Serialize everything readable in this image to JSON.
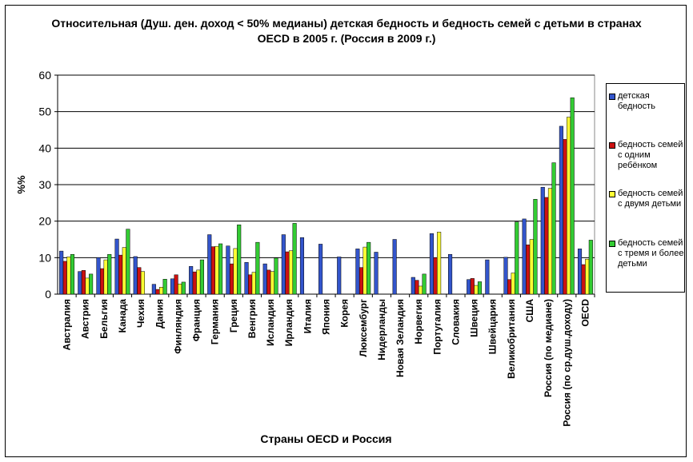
{
  "chart_data": {
    "type": "bar",
    "title": "Относительная  (Душ. ден. доход < 50% медианы) детская бедность и бедность семей с детьми в странах OECD в 2005 г. (Россия в 2009 г.)",
    "xlabel": "Страны OECD и Россия",
    "ylabel": "%%",
    "ylim": [
      0,
      60
    ],
    "yticks": [
      "0",
      "10",
      "20",
      "30",
      "40",
      "50",
      "60"
    ],
    "grid": true,
    "legend_position": "right",
    "categories": [
      "Австралия",
      "Австрия",
      "Бельгия",
      "Канада",
      "Чехия",
      "Дания",
      "Финляндия",
      "Франция",
      "Германия",
      "Греция",
      "Венгрия",
      "Исландия",
      "Ирландия",
      "Италия",
      "Япония",
      "Корея",
      "Люксембург",
      "Нидерланды",
      "Новая Зеландия",
      "Норвегия",
      "Португалия",
      "Словакия",
      "Швеция",
      "Швейцария",
      "Великобритания",
      "США",
      "Россия (по медиане)",
      "Россия (по ср.душ.доходу)",
      "OECD"
    ],
    "series": [
      {
        "name": "детская бедность",
        "color": "#3355cc",
        "values": [
          11.8,
          6.2,
          10.0,
          15.1,
          10.3,
          2.7,
          4.2,
          7.6,
          16.3,
          13.2,
          8.7,
          8.3,
          16.3,
          15.5,
          13.7,
          10.2,
          12.4,
          11.5,
          15.0,
          4.6,
          16.6,
          10.9,
          4.0,
          9.4,
          10.1,
          20.6,
          29.3,
          46.0,
          12.4
        ]
      },
      {
        "name": "бедность семей с одним ребёнком",
        "color": "#cc1111",
        "values": [
          9.0,
          6.5,
          7.0,
          10.7,
          7.3,
          1.3,
          5.3,
          6.1,
          13.0,
          8.3,
          5.3,
          6.6,
          11.6,
          null,
          null,
          null,
          7.3,
          null,
          null,
          3.8,
          10.0,
          null,
          4.3,
          null,
          4.0,
          13.5,
          26.5,
          42.4,
          8.1
        ]
      },
      {
        "name": "бедность семей с двумя детьми",
        "color": "#ffff33",
        "values": [
          10.2,
          4.4,
          9.4,
          12.8,
          6.2,
          1.9,
          2.8,
          6.6,
          13.1,
          12.5,
          6.0,
          6.2,
          11.9,
          null,
          null,
          null,
          12.9,
          null,
          null,
          2.2,
          17.0,
          null,
          2.4,
          null,
          5.8,
          15.0,
          29.0,
          48.5,
          9.6
        ]
      },
      {
        "name": "бедность семей с тремя и более детьми",
        "color": "#33cc33",
        "values": [
          10.9,
          5.5,
          10.9,
          17.8,
          null,
          4.1,
          3.3,
          9.4,
          13.8,
          19.0,
          14.2,
          9.9,
          19.4,
          null,
          null,
          null,
          14.2,
          null,
          null,
          5.5,
          null,
          null,
          3.4,
          null,
          19.8,
          26.0,
          36.0,
          53.8,
          14.8
        ]
      }
    ]
  },
  "legend": {
    "items": [
      {
        "label": "детская бедность",
        "color": "#3355cc"
      },
      {
        "label": "бедность семей с одним ребёнком",
        "color": "#cc1111"
      },
      {
        "label": "бедность семей с двумя детьми",
        "color": "#ffff33"
      },
      {
        "label": "бедность семей с тремя и более детьми",
        "color": "#33cc33"
      }
    ]
  }
}
